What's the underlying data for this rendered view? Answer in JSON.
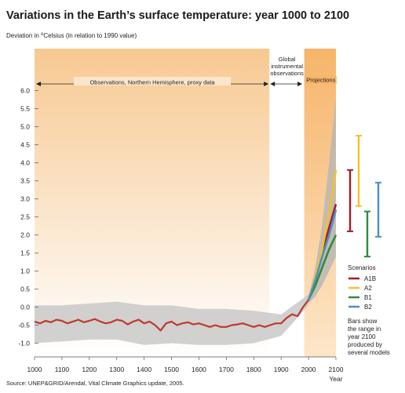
{
  "chart_data": {
    "type": "line",
    "title": "Variations in the Earth’s surface temperature: year 1000 to 2100",
    "ylabel": "Deviation in °Celsius (in relation to 1990 value)",
    "ylabel_prefix": "Deviation in ",
    "ylabel_sup": "o",
    "ylabel_suffix": "Celsius (in relation to 1990 value)",
    "xlabel": "Year",
    "xlim": [
      1000,
      2100
    ],
    "ylim": [
      -1.2,
      6.2
    ],
    "xticks": [
      1000,
      1100,
      1200,
      1300,
      1400,
      1500,
      1600,
      1700,
      1800,
      1900,
      2000,
      2100
    ],
    "yticks": [
      -1.0,
      -0.5,
      0.0,
      0.5,
      1.0,
      1.5,
      2.0,
      2.5,
      3.0,
      3.5,
      4.0,
      4.5,
      5.0,
      5.5,
      6.0
    ],
    "ytick_labels": [
      "-1.0",
      "-0.5",
      "0.0",
      "0.5",
      "1.0",
      "1.5",
      "2.0",
      "2.5",
      "3.0",
      "3.5",
      "4.0",
      "4.5",
      "5.0",
      "5.5",
      "6.0"
    ],
    "periods": [
      {
        "label": "Observations, Northern Hemisphere, proxy data",
        "start": 1000,
        "end": 1860
      },
      {
        "label": "Global instrumental observations",
        "lines": [
          "Global",
          "instrumental",
          "observations"
        ],
        "start": 1860,
        "end": 2000
      },
      {
        "label": "Projections",
        "start": 1990,
        "end": 2100
      }
    ],
    "proxy_series": {
      "name": "Observations",
      "color": "#c0392b",
      "x": [
        1000,
        1020,
        1040,
        1060,
        1080,
        1100,
        1120,
        1140,
        1160,
        1180,
        1200,
        1220,
        1240,
        1260,
        1280,
        1300,
        1320,
        1340,
        1360,
        1380,
        1400,
        1420,
        1440,
        1460,
        1480,
        1500,
        1520,
        1540,
        1560,
        1580,
        1600,
        1620,
        1640,
        1660,
        1680,
        1700,
        1720,
        1740,
        1760,
        1780,
        1800,
        1820,
        1840,
        1860,
        1880,
        1900,
        1920,
        1940,
        1960,
        1980,
        2000
      ],
      "y": [
        -0.4,
        -0.45,
        -0.38,
        -0.42,
        -0.35,
        -0.38,
        -0.45,
        -0.4,
        -0.35,
        -0.42,
        -0.38,
        -0.33,
        -0.4,
        -0.45,
        -0.42,
        -0.35,
        -0.38,
        -0.48,
        -0.4,
        -0.35,
        -0.45,
        -0.4,
        -0.5,
        -0.65,
        -0.45,
        -0.4,
        -0.5,
        -0.45,
        -0.42,
        -0.48,
        -0.45,
        -0.5,
        -0.55,
        -0.5,
        -0.55,
        -0.55,
        -0.5,
        -0.48,
        -0.45,
        -0.5,
        -0.55,
        -0.5,
        -0.55,
        -0.5,
        -0.45,
        -0.45,
        -0.3,
        -0.2,
        -0.25,
        0.0,
        0.2
      ]
    },
    "uncertainty_band": {
      "x": [
        1000,
        1100,
        1200,
        1300,
        1400,
        1500,
        1600,
        1700,
        1800,
        1900,
        2000
      ],
      "upper": [
        0.05,
        0.05,
        0.1,
        0.15,
        0.05,
        0.05,
        -0.05,
        -0.05,
        -0.1,
        -0.2,
        0.35
      ],
      "lower": [
        -1.0,
        -0.95,
        -0.9,
        -0.9,
        -1.05,
        -1.0,
        -1.05,
        -1.05,
        -1.0,
        -0.8,
        0.05
      ]
    },
    "projection_envelope": {
      "x": [
        2000,
        2025,
        2050,
        2075,
        2100
      ],
      "upper": [
        0.3,
        1.1,
        2.3,
        4.0,
        5.8
      ],
      "lower": [
        0.1,
        0.3,
        0.6,
        1.0,
        1.4
      ]
    },
    "legend_title": "Scenarios",
    "series": [
      {
        "name": "A1B",
        "color": "#a51c24",
        "x": [
          2000,
          2025,
          2050,
          2075,
          2100
        ],
        "y": [
          0.2,
          0.8,
          1.5,
          2.2,
          2.85
        ],
        "range": [
          2.1,
          3.8
        ]
      },
      {
        "name": "A2",
        "color": "#f2c12e",
        "x": [
          2000,
          2025,
          2050,
          2075,
          2100
        ],
        "y": [
          0.2,
          0.85,
          1.6,
          2.6,
          3.8
        ],
        "range": [
          2.8,
          4.75
        ]
      },
      {
        "name": "B1",
        "color": "#2e8b3a",
        "x": [
          2000,
          2025,
          2050,
          2075,
          2100
        ],
        "y": [
          0.2,
          0.6,
          1.1,
          1.6,
          2.0
        ],
        "range": [
          1.4,
          2.65
        ]
      },
      {
        "name": "B2",
        "color": "#4a8fc8",
        "x": [
          2000,
          2025,
          2050,
          2075,
          2100
        ],
        "y": [
          0.2,
          0.75,
          1.4,
          2.0,
          2.7
        ],
        "range": [
          1.95,
          3.45
        ]
      }
    ],
    "annotation": "Bars show the range in year 2100 produced by several models",
    "annotation_lines": [
      "Bars show",
      "the range in",
      "year 2100",
      "produced by",
      "several models"
    ]
  },
  "source": "Source: UNEP&GRID/Arendal, Vital Climate Graphics update, 2005."
}
